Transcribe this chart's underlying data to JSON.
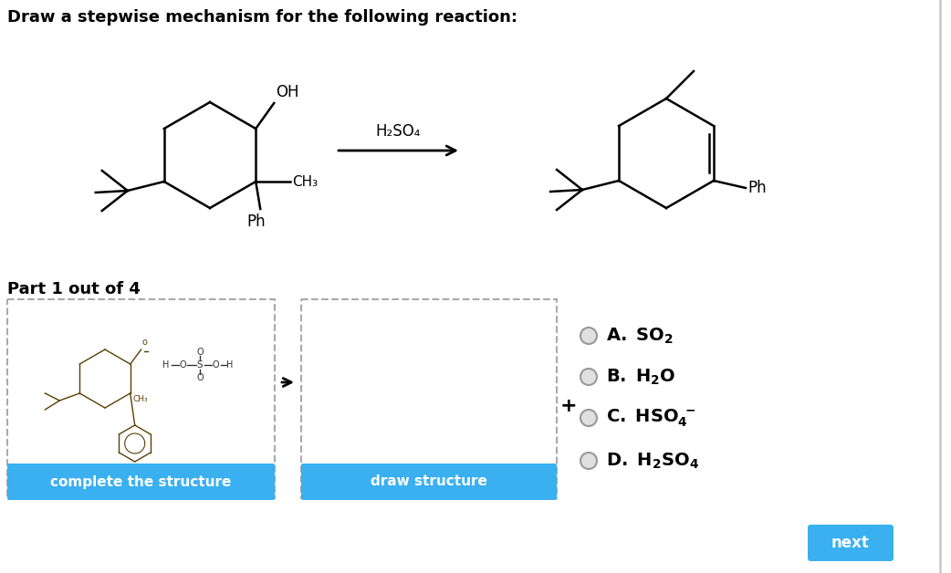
{
  "title": "Draw a stepwise mechanism for the following reaction:",
  "background_color": "#ffffff",
  "title_fontsize": 13,
  "reagent_label": "H₂SO₄",
  "part_label": "Part 1 out of 4",
  "btn1_text": "complete the structure",
  "btn2_text": "draw structure",
  "btn_color": "#3ab0f0",
  "btn_text_color": "#ffffff",
  "next_btn_text": "next",
  "dashed_border_color": "#aaaaaa",
  "arrow_color": "#000000"
}
